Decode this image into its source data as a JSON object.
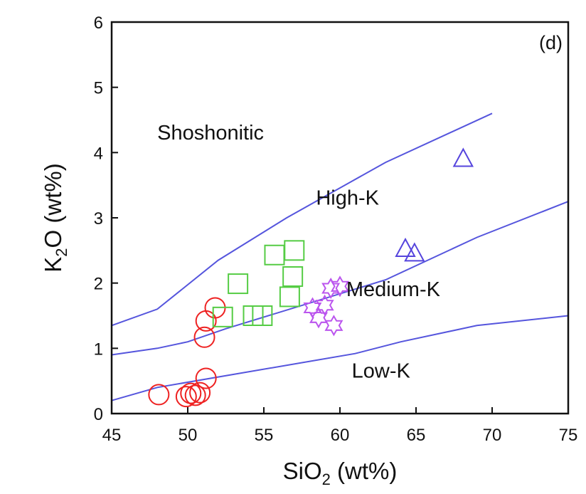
{
  "chart_data": {
    "type": "scatter",
    "panel_label": "(d)",
    "xlabel": {
      "main": "SiO",
      "sub": "2",
      "unit": " (wt%)"
    },
    "ylabel": {
      "main": "K",
      "sub": "2",
      "rest": "O (wt%)"
    },
    "xlim": [
      45,
      75
    ],
    "ylim": [
      0,
      6
    ],
    "x_ticks": [
      45,
      50,
      55,
      60,
      65,
      70,
      75
    ],
    "y_ticks": [
      0,
      1,
      2,
      3,
      4,
      5,
      6
    ],
    "grid": false,
    "boundary_color": "#5555dd",
    "boundaries": [
      {
        "x": [
          45,
          48,
          52,
          56.5,
          63,
          70
        ],
        "y": [
          1.35,
          1.6,
          2.35,
          3.0,
          3.85,
          4.6
        ]
      },
      {
        "x": [
          45,
          48,
          50,
          52.5,
          63,
          69,
          75
        ],
        "y": [
          0.9,
          1.0,
          1.1,
          1.3,
          2.05,
          2.7,
          3.25
        ]
      },
      {
        "x": [
          45,
          48,
          61,
          64,
          69,
          75
        ],
        "y": [
          0.2,
          0.4,
          0.92,
          1.1,
          1.35,
          1.5
        ]
      }
    ],
    "region_labels": [
      {
        "text": "Shoshonitic",
        "x": 51.5,
        "y": 4.2
      },
      {
        "text": "High-K",
        "x": 60.5,
        "y": 3.2
      },
      {
        "text": "Medium-K",
        "x": 63.5,
        "y": 1.8
      },
      {
        "text": "Low-K",
        "x": 62.7,
        "y": 0.55
      }
    ],
    "series": [
      {
        "marker": "circle",
        "color": "#ee2222",
        "points": [
          [
            48.1,
            0.29
          ],
          [
            49.9,
            0.26
          ],
          [
            50.2,
            0.31
          ],
          [
            50.5,
            0.28
          ],
          [
            50.8,
            0.32
          ],
          [
            51.2,
            0.54
          ],
          [
            51.1,
            1.17
          ],
          [
            51.2,
            1.42
          ],
          [
            51.8,
            1.62
          ]
        ]
      },
      {
        "marker": "square",
        "color": "#55cc44",
        "points": [
          [
            52.3,
            1.48
          ],
          [
            53.3,
            1.99
          ],
          [
            54.3,
            1.5
          ],
          [
            54.9,
            1.5
          ],
          [
            55.7,
            2.43
          ],
          [
            56.7,
            1.79
          ],
          [
            56.9,
            2.1
          ],
          [
            57.0,
            2.5
          ]
        ]
      },
      {
        "marker": "star",
        "color": "#bb55ee",
        "points": [
          [
            58.2,
            1.62
          ],
          [
            58.6,
            1.47
          ],
          [
            59.0,
            1.66
          ],
          [
            59.4,
            1.92
          ],
          [
            59.6,
            1.35
          ],
          [
            60.0,
            1.95
          ]
        ]
      },
      {
        "marker": "triangle",
        "color": "#5544dd",
        "points": [
          [
            64.3,
            2.52
          ],
          [
            64.9,
            2.45
          ],
          [
            68.1,
            3.9
          ]
        ]
      }
    ]
  }
}
